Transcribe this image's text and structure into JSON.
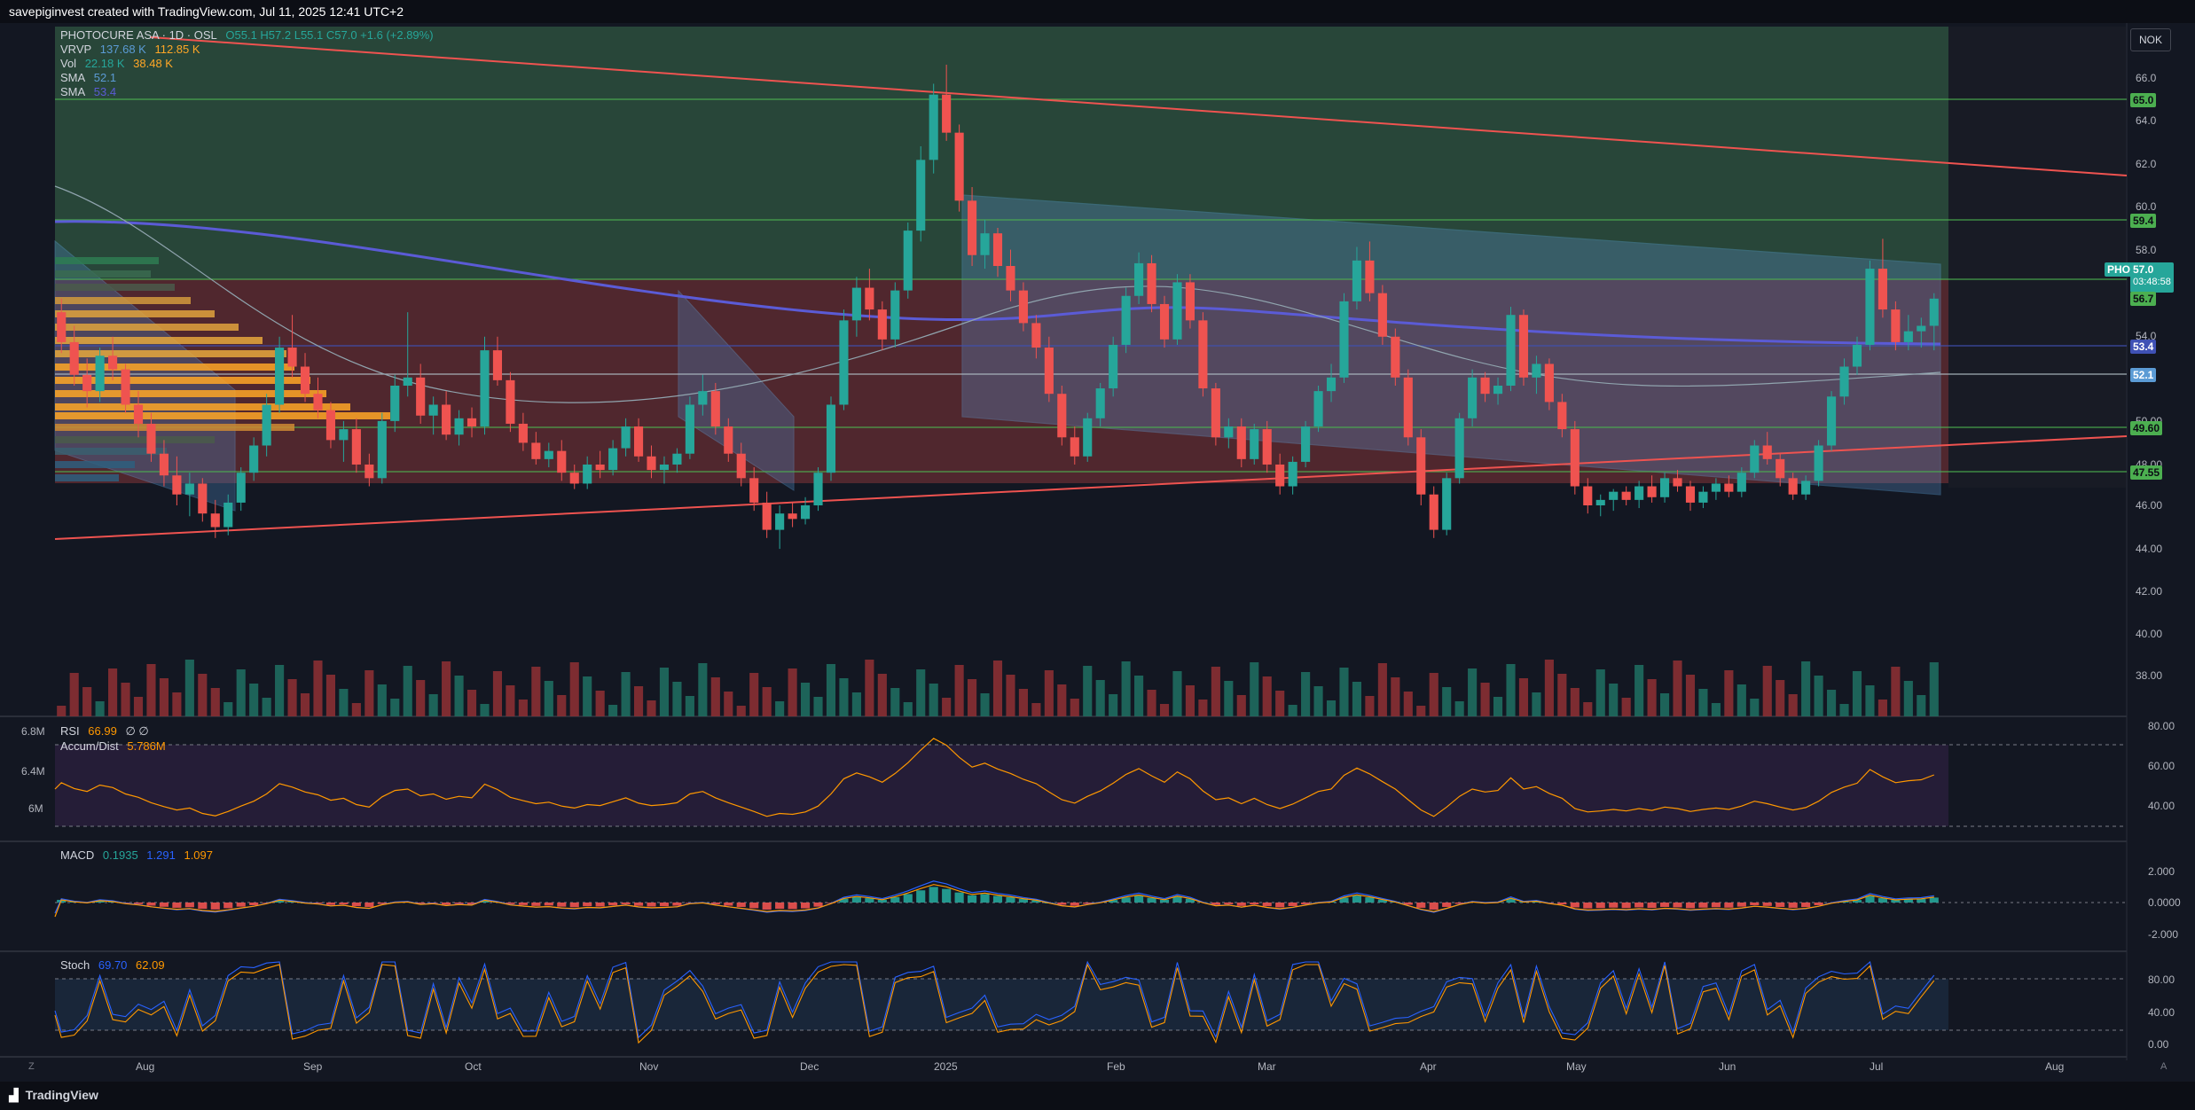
{
  "header": {
    "watermark": "savepiginvest created with TradingView.com, Jul 11, 2025 12:41 UTC+2"
  },
  "legend": {
    "symbol": "PHOTOCURE ASA · 1D · OSL",
    "ohlc": "O55.1 H57.2 L55.1 C57.0 +1.6 (+2.89%)",
    "vrvp_label": "VRVP",
    "vrvp_v1": "137.68 K",
    "vrvp_v2": "112.85 K",
    "vol_label": "Vol",
    "vol_v1": "22.18 K",
    "vol_v2": "38.48 K",
    "sma1_label": "SMA",
    "sma1_value": "52.1",
    "sma2_label": "SMA",
    "sma2_value": "53.4"
  },
  "currency": "NOK",
  "price_axis": {
    "ticks": [
      "66.0",
      "64.0",
      "62.0",
      "60.0",
      "58.0",
      "54.0",
      "50.00",
      "48.00",
      "46.00",
      "44.00",
      "42.00",
      "40.00",
      "38.00"
    ]
  },
  "price_tags": [
    {
      "label": "65.0",
      "color": "#4caf50"
    },
    {
      "label": "59.4",
      "color": "#4caf50"
    },
    {
      "label": "57.0",
      "color": "#26a69a"
    },
    {
      "label": "56.7",
      "color": "#4caf50"
    },
    {
      "label": "53.4",
      "color": "#3f51b5"
    },
    {
      "label": "52.1",
      "color": "#5b9bd5"
    },
    {
      "label": "49.60",
      "color": "#4caf50"
    },
    {
      "label": "47.55",
      "color": "#4caf50"
    }
  ],
  "last_price": {
    "ticker": "PHO",
    "value": "57.0",
    "countdown": "03:48:58"
  },
  "rsi": {
    "label": "RSI",
    "value": "66.99",
    "extra": "∅ ∅",
    "accdist_label": "Accum/Dist",
    "accdist_value": "5.786M",
    "ticks": [
      "80.00",
      "60.00",
      "40.00"
    ],
    "left_ticks": [
      "6.8M",
      "6.4M",
      "6M"
    ]
  },
  "macd": {
    "label": "MACD",
    "v1": "0.1935",
    "v2": "1.291",
    "v3": "1.097",
    "ticks": [
      "2.000",
      "0.0000",
      "-2.000"
    ]
  },
  "stoch": {
    "label": "Stoch",
    "v1": "69.70",
    "v2": "62.09",
    "ticks": [
      "80.00",
      "40.00",
      "0.00"
    ]
  },
  "time_axis": [
    "Aug",
    "Sep",
    "Oct",
    "Nov",
    "Dec",
    "2025",
    "Feb",
    "Mar",
    "Apr",
    "May",
    "Jun",
    "Jul",
    "Aug"
  ],
  "footer": {
    "brand": "TradingView",
    "z": "Z",
    "a": "A"
  },
  "colors": {
    "up": "#26a69a",
    "down": "#ef5350",
    "bg": "#131722",
    "sma_blue": "#5b5bd6",
    "channel": "#64b5f6"
  },
  "chart_data": {
    "type": "candlestick",
    "candles": [
      [
        56.5,
        57.0,
        55.0,
        55.4
      ],
      [
        55.4,
        56.0,
        53.8,
        54.2
      ],
      [
        54.2,
        54.8,
        53.0,
        53.6
      ],
      [
        53.6,
        55.2,
        53.2,
        54.9
      ],
      [
        54.9,
        55.6,
        54.0,
        54.4
      ],
      [
        54.4,
        54.6,
        52.8,
        53.1
      ],
      [
        53.1,
        53.6,
        51.9,
        52.4
      ],
      [
        52.4,
        52.8,
        51.0,
        51.3
      ],
      [
        51.3,
        51.8,
        50.1,
        50.5
      ],
      [
        50.5,
        51.2,
        49.4,
        49.8
      ],
      [
        49.8,
        50.6,
        49.0,
        50.2
      ],
      [
        50.2,
        50.4,
        48.8,
        49.1
      ],
      [
        49.1,
        49.6,
        48.2,
        48.6
      ],
      [
        48.6,
        49.8,
        48.3,
        49.5
      ],
      [
        49.5,
        50.8,
        49.2,
        50.6
      ],
      [
        50.6,
        51.9,
        50.3,
        51.6
      ],
      [
        51.6,
        53.5,
        51.2,
        53.1
      ],
      [
        53.1,
        55.6,
        52.8,
        55.2
      ],
      [
        55.2,
        56.4,
        54.1,
        54.5
      ],
      [
        54.5,
        55.0,
        53.2,
        53.5
      ],
      [
        53.5,
        54.1,
        52.6,
        52.9
      ],
      [
        52.9,
        53.2,
        51.5,
        51.8
      ],
      [
        51.8,
        52.5,
        51.0,
        52.2
      ],
      [
        52.2,
        52.6,
        50.6,
        50.9
      ],
      [
        50.9,
        51.3,
        50.1,
        50.4
      ],
      [
        50.4,
        52.8,
        50.2,
        52.5
      ],
      [
        52.5,
        54.2,
        52.1,
        53.8
      ],
      [
        53.8,
        56.5,
        53.4,
        54.1
      ],
      [
        54.1,
        54.6,
        52.4,
        52.7
      ],
      [
        52.7,
        53.4,
        52.0,
        53.1
      ],
      [
        53.1,
        53.6,
        51.8,
        52.0
      ],
      [
        52.0,
        52.9,
        51.6,
        52.6
      ],
      [
        52.6,
        53.0,
        51.9,
        52.3
      ],
      [
        52.3,
        55.6,
        52.0,
        55.1
      ],
      [
        55.1,
        55.6,
        53.8,
        54.0
      ],
      [
        54.0,
        54.3,
        52.1,
        52.4
      ],
      [
        52.4,
        52.8,
        51.4,
        51.7
      ],
      [
        51.7,
        52.1,
        50.9,
        51.1
      ],
      [
        51.1,
        51.7,
        50.8,
        51.4
      ],
      [
        51.4,
        51.8,
        50.3,
        50.6
      ],
      [
        50.6,
        50.9,
        50.0,
        50.2
      ],
      [
        50.2,
        51.2,
        50.0,
        50.9
      ],
      [
        50.9,
        51.4,
        50.4,
        50.7
      ],
      [
        50.7,
        51.8,
        50.5,
        51.5
      ],
      [
        51.5,
        52.6,
        51.2,
        52.3
      ],
      [
        52.3,
        52.6,
        51.0,
        51.2
      ],
      [
        51.2,
        51.6,
        50.4,
        50.7
      ],
      [
        50.7,
        51.2,
        50.2,
        50.9
      ],
      [
        50.9,
        51.5,
        50.6,
        51.3
      ],
      [
        51.3,
        53.4,
        51.1,
        53.1
      ],
      [
        53.1,
        54.2,
        52.7,
        53.6
      ],
      [
        53.6,
        53.9,
        52.0,
        52.3
      ],
      [
        52.3,
        52.6,
        51.0,
        51.3
      ],
      [
        51.3,
        51.7,
        50.1,
        50.4
      ],
      [
        50.4,
        50.8,
        49.2,
        49.5
      ],
      [
        49.5,
        49.9,
        48.2,
        48.5
      ],
      [
        48.5,
        49.4,
        47.8,
        49.1
      ],
      [
        49.1,
        49.5,
        48.6,
        48.9
      ],
      [
        48.9,
        49.7,
        48.7,
        49.4
      ],
      [
        49.4,
        50.8,
        49.2,
        50.6
      ],
      [
        50.6,
        53.4,
        50.3,
        53.1
      ],
      [
        53.1,
        56.6,
        52.9,
        56.2
      ],
      [
        56.2,
        57.8,
        55.6,
        57.4
      ],
      [
        57.4,
        58.1,
        56.2,
        56.6
      ],
      [
        56.6,
        56.9,
        55.1,
        55.5
      ],
      [
        55.5,
        57.6,
        55.2,
        57.3
      ],
      [
        57.3,
        59.8,
        57.0,
        59.5
      ],
      [
        59.5,
        62.6,
        59.1,
        62.1
      ],
      [
        62.1,
        64.9,
        61.6,
        64.5
      ],
      [
        64.5,
        65.6,
        62.8,
        63.1
      ],
      [
        63.1,
        63.4,
        60.2,
        60.6
      ],
      [
        60.6,
        61.1,
        58.2,
        58.6
      ],
      [
        58.6,
        59.9,
        58.1,
        59.4
      ],
      [
        59.4,
        59.6,
        57.8,
        58.2
      ],
      [
        58.2,
        58.8,
        56.9,
        57.3
      ],
      [
        57.3,
        57.6,
        55.8,
        56.1
      ],
      [
        56.1,
        56.4,
        54.8,
        55.2
      ],
      [
        55.2,
        55.6,
        53.2,
        53.5
      ],
      [
        53.5,
        53.8,
        51.6,
        51.9
      ],
      [
        51.9,
        52.3,
        50.9,
        51.2
      ],
      [
        51.2,
        52.8,
        51.0,
        52.6
      ],
      [
        52.6,
        53.9,
        52.3,
        53.7
      ],
      [
        53.7,
        55.6,
        53.4,
        55.3
      ],
      [
        55.3,
        57.4,
        55.0,
        57.1
      ],
      [
        57.1,
        58.7,
        56.8,
        58.3
      ],
      [
        58.3,
        58.6,
        56.5,
        56.8
      ],
      [
        56.8,
        57.1,
        55.2,
        55.5
      ],
      [
        55.5,
        57.9,
        55.3,
        57.6
      ],
      [
        57.6,
        57.9,
        55.9,
        56.2
      ],
      [
        56.2,
        56.5,
        53.4,
        53.7
      ],
      [
        53.7,
        53.9,
        51.6,
        51.9
      ],
      [
        51.9,
        52.6,
        51.5,
        52.3
      ],
      [
        52.3,
        52.6,
        50.8,
        51.1
      ],
      [
        51.1,
        52.4,
        50.9,
        52.2
      ],
      [
        52.2,
        52.5,
        50.6,
        50.9
      ],
      [
        50.9,
        51.3,
        49.8,
        50.1
      ],
      [
        50.1,
        51.2,
        49.8,
        51.0
      ],
      [
        51.0,
        52.5,
        50.8,
        52.3
      ],
      [
        52.3,
        53.8,
        52.1,
        53.6
      ],
      [
        53.6,
        54.6,
        53.2,
        54.1
      ],
      [
        54.1,
        57.2,
        53.9,
        56.9
      ],
      [
        56.9,
        58.9,
        56.6,
        58.4
      ],
      [
        58.4,
        59.1,
        56.9,
        57.2
      ],
      [
        57.2,
        57.5,
        55.3,
        55.6
      ],
      [
        55.6,
        55.9,
        53.8,
        54.1
      ],
      [
        54.1,
        54.4,
        51.6,
        51.9
      ],
      [
        51.9,
        52.2,
        49.4,
        49.8
      ],
      [
        49.8,
        50.1,
        48.2,
        48.5
      ],
      [
        48.5,
        50.6,
        48.3,
        50.4
      ],
      [
        50.4,
        52.8,
        50.2,
        52.6
      ],
      [
        52.6,
        54.4,
        52.3,
        54.1
      ],
      [
        54.1,
        54.3,
        53.2,
        53.5
      ],
      [
        53.5,
        54.1,
        53.1,
        53.8
      ],
      [
        53.8,
        56.7,
        53.6,
        56.4
      ],
      [
        56.4,
        56.6,
        53.8,
        54.1
      ],
      [
        54.1,
        54.9,
        53.5,
        54.6
      ],
      [
        54.6,
        54.8,
        52.9,
        53.2
      ],
      [
        53.2,
        53.5,
        51.9,
        52.2
      ],
      [
        52.2,
        52.5,
        49.8,
        50.1
      ],
      [
        50.1,
        50.4,
        49.1,
        49.4
      ],
      [
        49.4,
        49.8,
        49.0,
        49.6
      ],
      [
        49.6,
        50.0,
        49.2,
        49.9
      ],
      [
        49.9,
        50.1,
        49.4,
        49.6
      ],
      [
        49.6,
        50.3,
        49.3,
        50.1
      ],
      [
        50.1,
        50.5,
        49.5,
        49.7
      ],
      [
        49.7,
        50.6,
        49.5,
        50.4
      ],
      [
        50.4,
        50.7,
        49.9,
        50.1
      ],
      [
        50.1,
        50.3,
        49.2,
        49.5
      ],
      [
        49.5,
        50.1,
        49.3,
        49.9
      ],
      [
        49.9,
        50.4,
        49.6,
        50.2
      ],
      [
        50.2,
        50.5,
        49.7,
        49.9
      ],
      [
        49.9,
        50.8,
        49.7,
        50.6
      ],
      [
        50.6,
        51.8,
        50.4,
        51.6
      ],
      [
        51.6,
        52.1,
        50.9,
        51.1
      ],
      [
        51.1,
        51.3,
        50.1,
        50.4
      ],
      [
        50.4,
        50.6,
        49.6,
        49.8
      ],
      [
        49.8,
        50.5,
        49.6,
        50.3
      ],
      [
        50.3,
        51.8,
        50.1,
        51.6
      ],
      [
        51.6,
        53.6,
        51.4,
        53.4
      ],
      [
        53.4,
        54.8,
        53.1,
        54.5
      ],
      [
        54.5,
        55.6,
        54.2,
        55.3
      ],
      [
        55.3,
        58.4,
        55.1,
        58.1
      ],
      [
        58.1,
        59.2,
        56.3,
        56.6
      ],
      [
        56.6,
        56.9,
        55.1,
        55.4
      ],
      [
        55.4,
        56.4,
        55.1,
        55.8
      ],
      [
        55.8,
        56.3,
        55.2,
        56.0
      ],
      [
        56.0,
        57.2,
        55.1,
        57.0
      ]
    ],
    "ylim": [
      45,
      67
    ],
    "sma_short": 52.1,
    "sma_long": 53.4
  }
}
